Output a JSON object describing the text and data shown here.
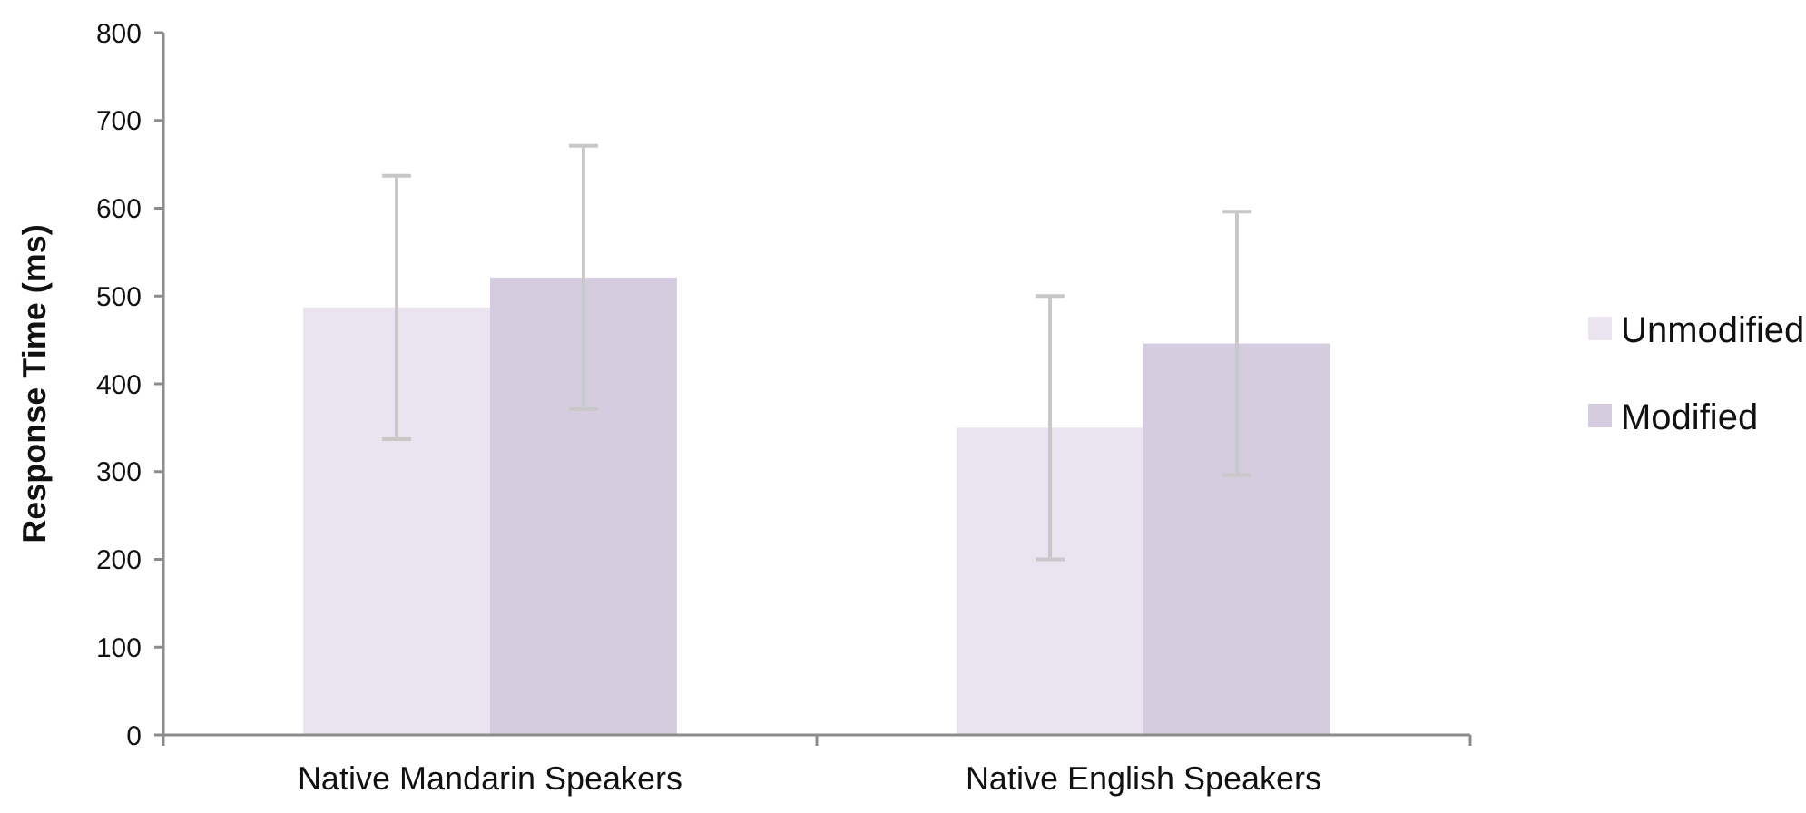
{
  "chart_data": {
    "type": "bar",
    "ylabel": "Response Time (ms)",
    "categories": [
      "Native Mandarin Speakers",
      "Native English Speakers"
    ],
    "series": [
      {
        "name": "Unmodified",
        "color": "#e9e4f0",
        "values": [
          487,
          350
        ],
        "errors": [
          150,
          150
        ]
      },
      {
        "name": "Modified",
        "color": "#d5cce0",
        "values": [
          521,
          446
        ],
        "errors": [
          150,
          150
        ]
      }
    ],
    "ylim": [
      0,
      800
    ],
    "yticks": [
      0,
      100,
      200,
      300,
      400,
      500,
      600,
      700,
      800
    ],
    "grid": false,
    "legend": "right"
  }
}
